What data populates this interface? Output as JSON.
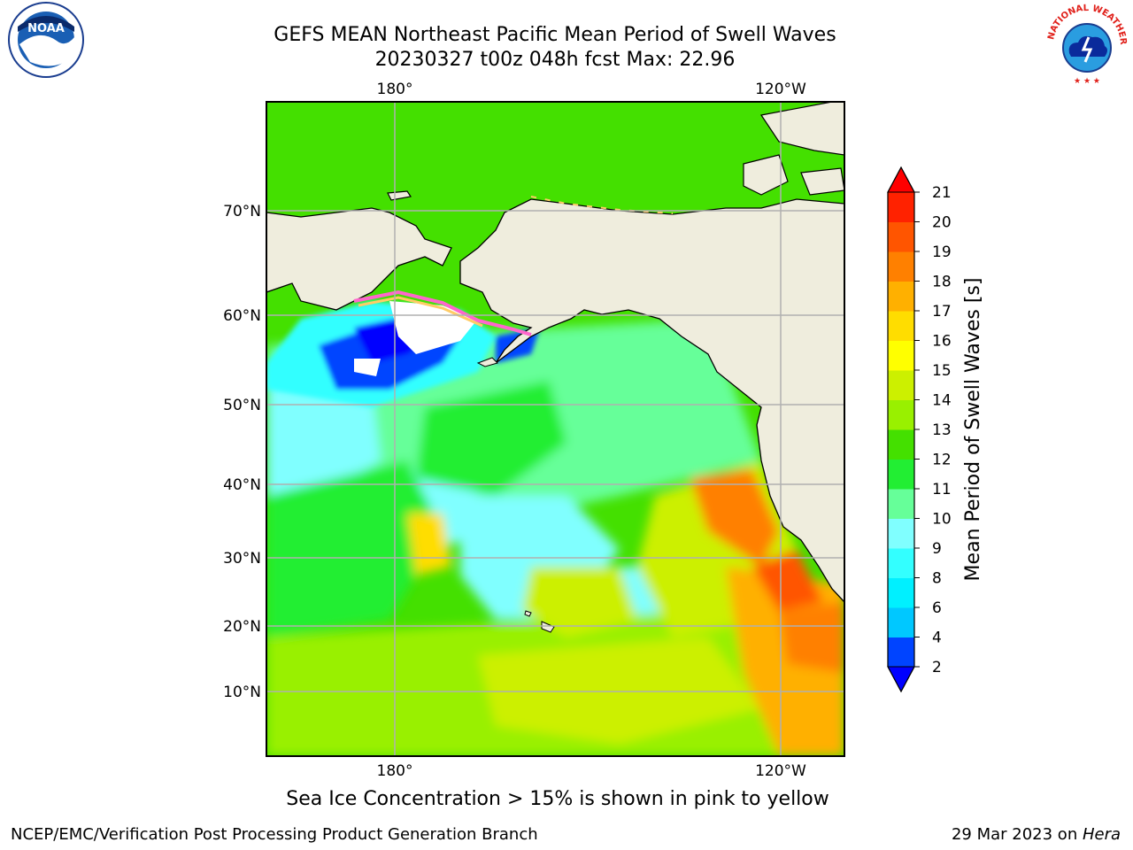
{
  "title": {
    "line1": "GEFS MEAN Northeast Pacific Mean Period of Swell Waves",
    "line2": "20230327 t00z 048h fcst   Max: 22.96"
  },
  "logos": {
    "left": "noaa-logo",
    "right": "nws-logo",
    "left_text": "NOAA",
    "nws_ring_text": "NATIONAL WEATHER SERVICE"
  },
  "map": {
    "lon_top_labels": [
      "180°",
      "120°W"
    ],
    "lon_bottom_labels": [
      "180°",
      "120°W"
    ],
    "lat_labels": [
      "70°N",
      "60°N",
      "50°N",
      "40°N",
      "30°N",
      "20°N",
      "10°N"
    ],
    "land_color": "#efeddd",
    "grid_color": "#b0b0b0"
  },
  "colorbar": {
    "label": "Mean Period of Swell Waves [s]",
    "ticks": [
      "2",
      "4",
      "6",
      "8",
      "9",
      "10",
      "11",
      "12",
      "13",
      "14",
      "15",
      "16",
      "17",
      "18",
      "19",
      "20",
      "21"
    ],
    "colors": [
      "#0044ff",
      "#00c8ff",
      "#00f0ff",
      "#33ffff",
      "#80ffff",
      "#66ff99",
      "#22ee33",
      "#44e000",
      "#99f000",
      "#ccf000",
      "#ffff00",
      "#ffdd00",
      "#ffb000",
      "#ff8000",
      "#ff5500",
      "#ff2200"
    ],
    "under_color": "#0000ff",
    "over_color": "#ff0000"
  },
  "caption": "Sea Ice Concentration > 15% is shown in pink to yellow",
  "footer": {
    "left": "NCEP/EMC/Verification Post Processing Product Generation Branch",
    "right_date": "29 Mar 2023 on ",
    "right_host": "Hera"
  }
}
